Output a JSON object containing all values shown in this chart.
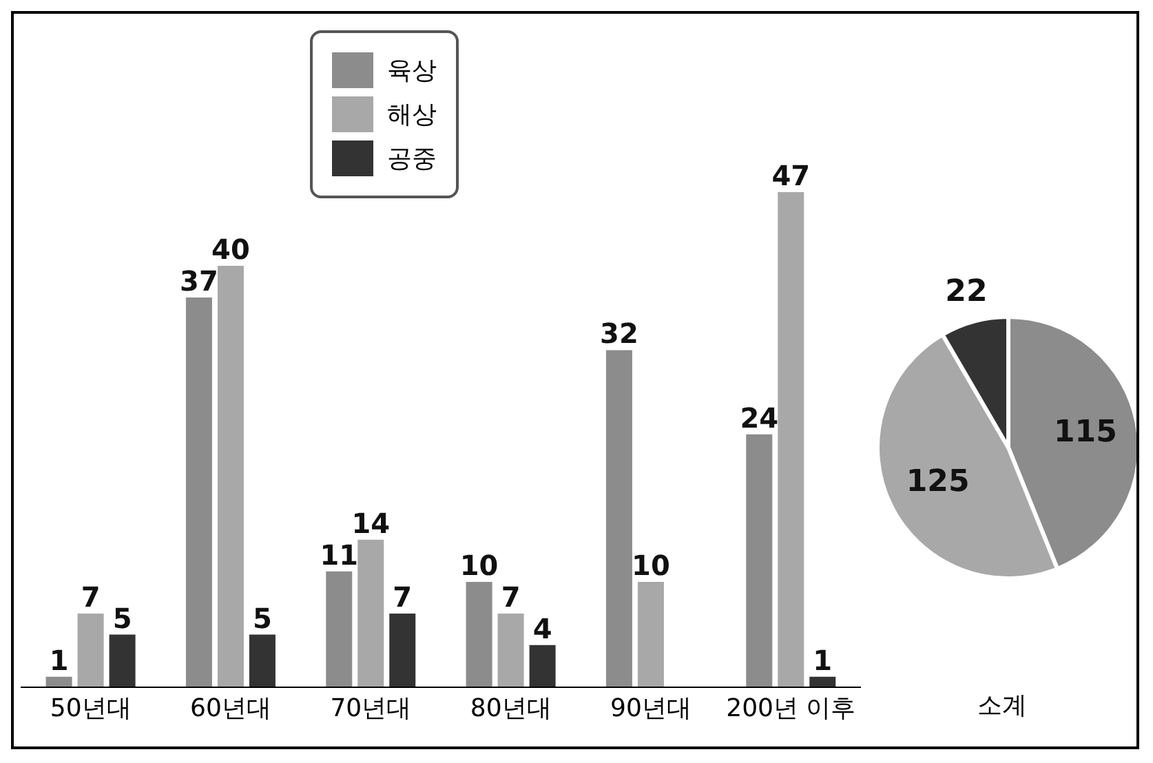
{
  "chart_data": [
    {
      "type": "bar",
      "categories": [
        "50년대",
        "60년대",
        "70년대",
        "80년대",
        "90년대",
        "200년 이후"
      ],
      "series": [
        {
          "name": "육상",
          "color": "#8c8c8c",
          "values": [
            1,
            37,
            11,
            10,
            32,
            24
          ]
        },
        {
          "name": "해상",
          "color": "#a8a8a8",
          "values": [
            7,
            40,
            14,
            7,
            10,
            47
          ]
        },
        {
          "name": "공중",
          "color": "#333333",
          "values": [
            5,
            5,
            7,
            4,
            null,
            1
          ]
        }
      ],
      "data_labels": true,
      "legend": "top left",
      "grid": false
    },
    {
      "type": "pie",
      "title": "소계",
      "values": [
        115,
        125,
        22
      ],
      "colors": [
        "#8c8c8c",
        "#a8a8a8",
        "#333333"
      ],
      "data_labels": true
    }
  ]
}
